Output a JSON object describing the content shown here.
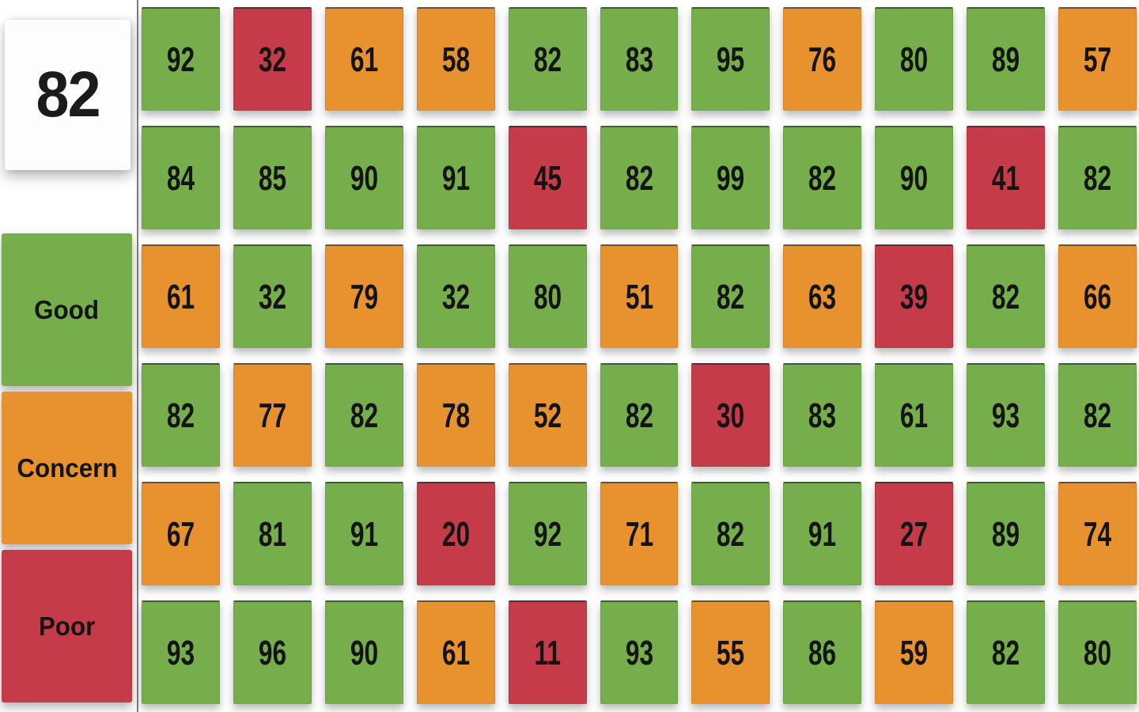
{
  "summary": {
    "score": "82"
  },
  "colors": {
    "good": "#76ae4c",
    "concern": "#e8922f",
    "poor": "#c53b4a"
  },
  "legend": [
    {
      "label": "Good",
      "status": "good",
      "color": "#76ae4c"
    },
    {
      "label": "Concern",
      "status": "concern",
      "color": "#e8922f"
    },
    {
      "label": "Poor",
      "status": "poor",
      "color": "#c53b4a"
    }
  ],
  "chart_data": {
    "type": "heatmap",
    "rows": 6,
    "cols": 11,
    "overall_score": 82,
    "legend_position": "left",
    "legend_labels": [
      "Good",
      "Concern",
      "Poor"
    ],
    "cells": [
      [
        {
          "value": 92,
          "status": "good"
        },
        {
          "value": 32,
          "status": "poor"
        },
        {
          "value": 61,
          "status": "concern"
        },
        {
          "value": 58,
          "status": "concern"
        },
        {
          "value": 82,
          "status": "good"
        },
        {
          "value": 83,
          "status": "good"
        },
        {
          "value": 95,
          "status": "good"
        },
        {
          "value": 76,
          "status": "concern"
        },
        {
          "value": 80,
          "status": "good"
        },
        {
          "value": 89,
          "status": "good"
        },
        {
          "value": 57,
          "status": "concern"
        }
      ],
      [
        {
          "value": 84,
          "status": "good"
        },
        {
          "value": 85,
          "status": "good"
        },
        {
          "value": 90,
          "status": "good"
        },
        {
          "value": 91,
          "status": "good"
        },
        {
          "value": 45,
          "status": "poor"
        },
        {
          "value": 82,
          "status": "good"
        },
        {
          "value": 99,
          "status": "good"
        },
        {
          "value": 82,
          "status": "good"
        },
        {
          "value": 90,
          "status": "good"
        },
        {
          "value": 41,
          "status": "poor"
        },
        {
          "value": 82,
          "status": "good"
        }
      ],
      [
        {
          "value": 61,
          "status": "concern"
        },
        {
          "value": 32,
          "status": "good"
        },
        {
          "value": 79,
          "status": "concern"
        },
        {
          "value": 32,
          "status": "good"
        },
        {
          "value": 80,
          "status": "good"
        },
        {
          "value": 51,
          "status": "concern"
        },
        {
          "value": 82,
          "status": "good"
        },
        {
          "value": 63,
          "status": "concern"
        },
        {
          "value": 39,
          "status": "poor"
        },
        {
          "value": 82,
          "status": "good"
        },
        {
          "value": 66,
          "status": "concern"
        }
      ],
      [
        {
          "value": 82,
          "status": "good"
        },
        {
          "value": 77,
          "status": "concern"
        },
        {
          "value": 82,
          "status": "good"
        },
        {
          "value": 78,
          "status": "concern"
        },
        {
          "value": 52,
          "status": "concern"
        },
        {
          "value": 82,
          "status": "good"
        },
        {
          "value": 30,
          "status": "poor"
        },
        {
          "value": 83,
          "status": "good"
        },
        {
          "value": 61,
          "status": "good"
        },
        {
          "value": 93,
          "status": "good"
        },
        {
          "value": 82,
          "status": "good"
        }
      ],
      [
        {
          "value": 67,
          "status": "concern"
        },
        {
          "value": 81,
          "status": "good"
        },
        {
          "value": 91,
          "status": "good"
        },
        {
          "value": 20,
          "status": "poor"
        },
        {
          "value": 92,
          "status": "good"
        },
        {
          "value": 71,
          "status": "concern"
        },
        {
          "value": 82,
          "status": "good"
        },
        {
          "value": 91,
          "status": "good"
        },
        {
          "value": 27,
          "status": "poor"
        },
        {
          "value": 89,
          "status": "good"
        },
        {
          "value": 74,
          "status": "concern"
        }
      ],
      [
        {
          "value": 93,
          "status": "good"
        },
        {
          "value": 96,
          "status": "good"
        },
        {
          "value": 90,
          "status": "good"
        },
        {
          "value": 61,
          "status": "concern"
        },
        {
          "value": 11,
          "status": "poor"
        },
        {
          "value": 93,
          "status": "good"
        },
        {
          "value": 55,
          "status": "concern"
        },
        {
          "value": 86,
          "status": "good"
        },
        {
          "value": 59,
          "status": "concern"
        },
        {
          "value": 82,
          "status": "good"
        },
        {
          "value": 80,
          "status": "good"
        }
      ]
    ]
  }
}
